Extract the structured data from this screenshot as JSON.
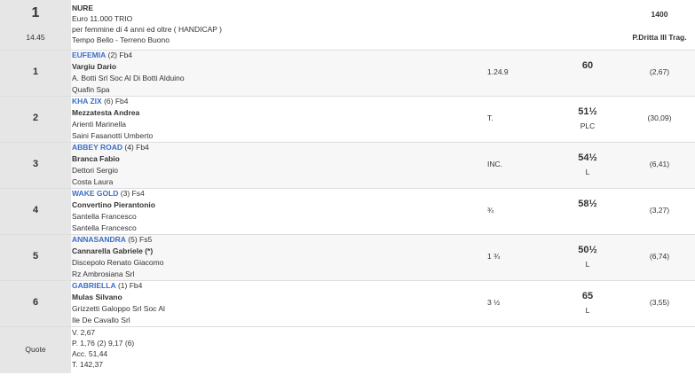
{
  "race": {
    "number": "1",
    "time": "14.45",
    "name": "NURE",
    "prize": "Euro 11.000 TRIO",
    "conditions": "per femmine di 4 anni ed oltre ( HANDICAP )",
    "weather": "Tempo Bello - Terreno Buono",
    "distance": "1400",
    "track": "P.Dritta III Trag."
  },
  "results": [
    {
      "position": "1",
      "horse": "EUFEMIA",
      "info": "(2) Fb4",
      "jockey": "Vargiu Dario",
      "trainer": "A. Botti Srl Soc Al Di Botti Alduino",
      "owner": "Quafin Spa",
      "gap": "1.24.9",
      "weight": "60",
      "odds": "(2,67)"
    },
    {
      "position": "2",
      "horse": "KHA ZIX",
      "info": "(6) Fb4",
      "jockey": "Mezzatesta Andrea",
      "trainer": "Arienti Marinella",
      "owner": "Saini Fasanotti Umberto",
      "gap": "T.",
      "weight": "51½",
      "note": "PLC",
      "odds": "(30,09)"
    },
    {
      "position": "3",
      "horse": "ABBEY ROAD",
      "info": "(4) Fb4",
      "jockey": "Branca Fabio",
      "trainer": "Dettori Sergio",
      "owner": "Costa Laura",
      "gap": "INC.",
      "weight": "54½",
      "note": "L",
      "odds": "(6,41)"
    },
    {
      "position": "4",
      "horse": "WAKE GOLD",
      "info": "(3) Fs4",
      "jockey": "Convertino Pierantonio",
      "trainer": "Santella Francesco",
      "owner": "Santella Francesco",
      "gap": "¾",
      "weight": "58½",
      "odds": "(3,27)"
    },
    {
      "position": "5",
      "horse": "ANNASANDRA",
      "info": "(5) Fs5",
      "jockey": "Cannarella Gabriele (*)",
      "trainer": "Discepolo Renato Giacomo",
      "owner": "Rz Ambrosiana Srl",
      "gap": "1 ¾",
      "weight": "50½",
      "note": "L",
      "odds": "(6,74)"
    },
    {
      "position": "6",
      "horse": "GABRIELLA",
      "info": "(1) Fb4",
      "jockey": "Mulas Silvano",
      "trainer": "Grizzetti Galoppo Srl Soc Al",
      "owner": "Ile De Cavallo Srl",
      "gap": "3 ½",
      "weight": "65",
      "note": "L",
      "odds": "(3,55)"
    }
  ],
  "quote": {
    "label": "Quote",
    "lines": [
      "V. 2,67",
      "P. 1,76 (2)  9,17 (6)",
      "Acc. 51,44",
      "T. 142,37"
    ]
  }
}
